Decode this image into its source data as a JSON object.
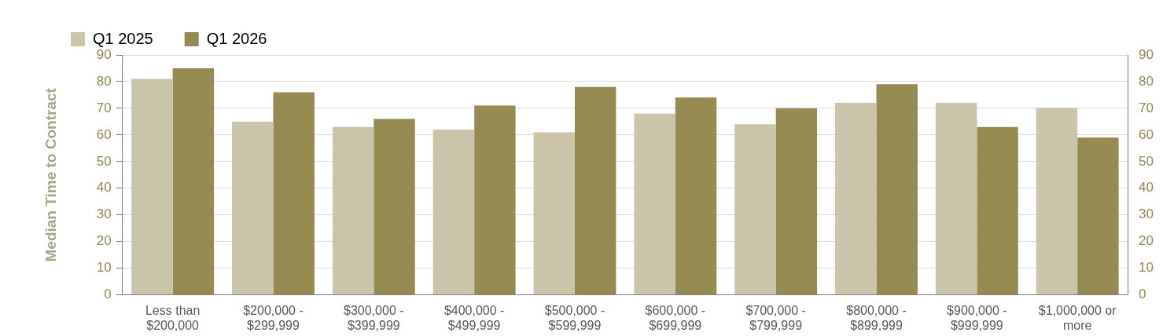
{
  "chart_data": {
    "type": "bar",
    "ylabel": "Median Time to Contract",
    "categories": [
      "Less than\n$200,000",
      "$200,000 -\n$299,999",
      "$300,000 -\n$399,999",
      "$400,000 -\n$499,999",
      "$500,000 -\n$599,999",
      "$600,000 -\n$699,999",
      "$700,000 -\n$799,999",
      "$800,000 -\n$899,999",
      "$900,000 -\n$999,999",
      "$1,000,000 or\nmore"
    ],
    "series": [
      {
        "name": "Q1 2025",
        "color": "#c9c4aa",
        "values": [
          81,
          65,
          63,
          62,
          61,
          68,
          64,
          72,
          72,
          70
        ]
      },
      {
        "name": "Q1 2026",
        "color": "#948a52",
        "values": [
          85,
          76,
          66,
          71,
          78,
          74,
          70,
          79,
          63,
          59
        ]
      }
    ],
    "ylim": [
      0,
      90
    ],
    "yticks": [
      0,
      10,
      20,
      30,
      40,
      50,
      60,
      70,
      80,
      90
    ],
    "y2lim": [
      0,
      90
    ],
    "y2ticks": [
      0,
      10,
      20,
      30,
      40,
      50,
      60,
      70,
      80,
      90
    ],
    "grid": "y",
    "legend": "top left"
  }
}
